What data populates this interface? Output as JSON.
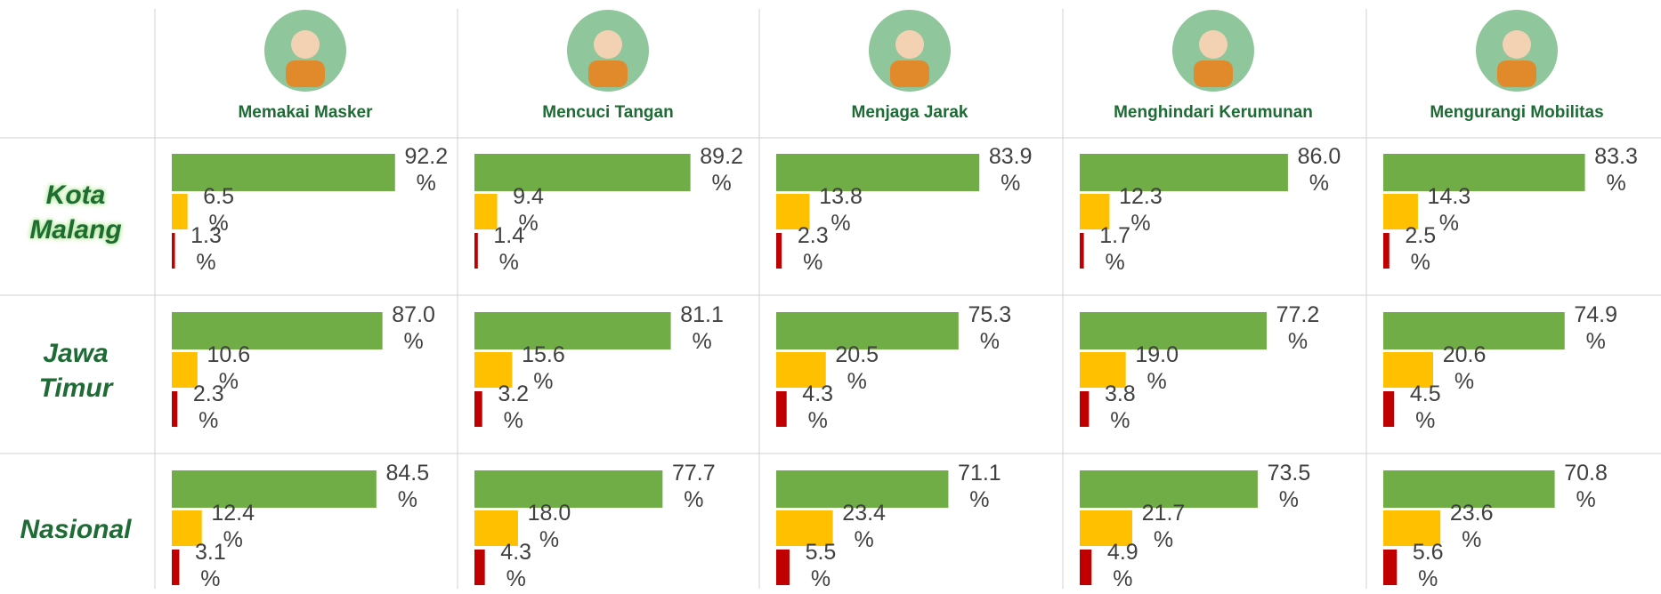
{
  "columns": [
    "Memakai Masker",
    "Mencuci Tangan",
    "Menjaga Jarak",
    "Menghindari Kerumunan",
    "Mengurangi Mobilitas"
  ],
  "colors": [
    "#70ad47",
    "#ffc000",
    "#c00000"
  ],
  "rows": [
    {
      "label": "Kota Malang",
      "cells": [
        {
          "values": [
            92.2,
            6.5,
            1.3
          ],
          "value_labels": [
            "92.2 %",
            "6.5 %",
            "1.3 %"
          ]
        },
        {
          "values": [
            89.2,
            9.4,
            1.4
          ],
          "value_labels": [
            "89.2 %",
            "9.4 %",
            "1.4 %"
          ]
        },
        {
          "values": [
            83.9,
            13.8,
            2.3
          ],
          "value_labels": [
            "83.9 %",
            "13.8 %",
            "2.3 %"
          ]
        },
        {
          "values": [
            86.0,
            12.3,
            1.7
          ],
          "value_labels": [
            "86.0 %",
            "12.3 %",
            "1.7 %"
          ]
        },
        {
          "values": [
            83.3,
            14.3,
            2.5
          ],
          "value_labels": [
            "83.3 %",
            "14.3 %",
            "2.5 %"
          ]
        }
      ]
    },
    {
      "label": "Jawa Timur",
      "cells": [
        {
          "values": [
            87.0,
            10.6,
            2.3
          ],
          "value_labels": [
            "87.0 %",
            "10.6 %",
            "2.3 %"
          ]
        },
        {
          "values": [
            81.1,
            15.6,
            3.2
          ],
          "value_labels": [
            "81.1 %",
            "15.6 %",
            "3.2 %"
          ]
        },
        {
          "values": [
            75.3,
            20.5,
            4.3
          ],
          "value_labels": [
            "75.3 %",
            "20.5 %",
            "4.3 %"
          ]
        },
        {
          "values": [
            77.2,
            19.0,
            3.8
          ],
          "value_labels": [
            "77.2 %",
            "19.0 %",
            "3.8 %"
          ]
        },
        {
          "values": [
            74.9,
            20.6,
            4.5
          ],
          "value_labels": [
            "74.9 %",
            "20.6 %",
            "4.5 %"
          ]
        }
      ]
    },
    {
      "label": "Nasional",
      "cells": [
        {
          "values": [
            84.5,
            12.4,
            3.1
          ],
          "value_labels": [
            "84.5 %",
            "12.4 %",
            "3.1 %"
          ]
        },
        {
          "values": [
            77.7,
            18.0,
            4.3
          ],
          "value_labels": [
            "77.7 %",
            "18.0 %",
            "4.3 %"
          ]
        },
        {
          "values": [
            71.1,
            23.4,
            5.5
          ],
          "value_labels": [
            "71.1 %",
            "23.4 %",
            "5.5 %"
          ]
        },
        {
          "values": [
            73.5,
            21.7,
            4.9
          ],
          "value_labels": [
            "73.5 %",
            "21.7 %",
            "4.9 %"
          ]
        },
        {
          "values": [
            70.8,
            23.6,
            5.6
          ],
          "value_labels": [
            "70.8 %",
            "23.6 %",
            "5.6 %"
          ]
        }
      ]
    }
  ]
}
